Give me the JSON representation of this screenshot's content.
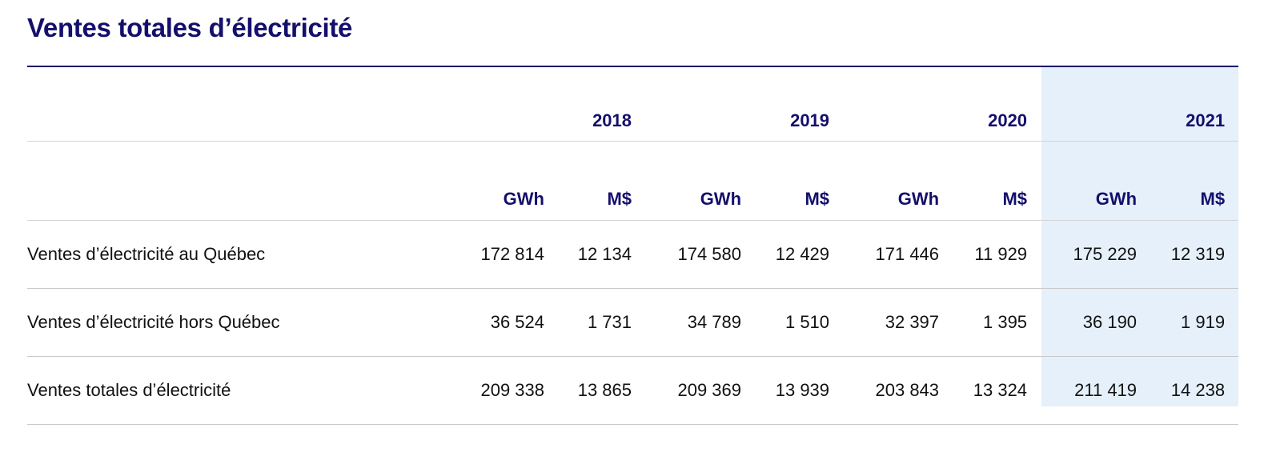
{
  "title": "Ventes totales d’électricité",
  "highlight_color": "#e5f0fb",
  "accent_color": "#140f6b",
  "years": [
    "2018",
    "2019",
    "2020",
    "2021"
  ],
  "units": [
    "GWh",
    "M$"
  ],
  "rows": [
    {
      "label": "Ventes d’électricité au Québec",
      "values": [
        "172 814",
        "12 134",
        "174 580",
        "12 429",
        "171 446",
        "11 929",
        "175 229",
        "12 319"
      ]
    },
    {
      "label": "Ventes d’électricité hors Québec",
      "values": [
        "36 524",
        "1 731",
        "34 789",
        "1 510",
        "32 397",
        "1 395",
        "36 190",
        "1 919"
      ]
    },
    {
      "label": "Ventes totales d’électricité",
      "values": [
        "209 338",
        "13 865",
        "209 369",
        "13 939",
        "203 843",
        "13 324",
        "211 419",
        "14 238"
      ]
    }
  ]
}
